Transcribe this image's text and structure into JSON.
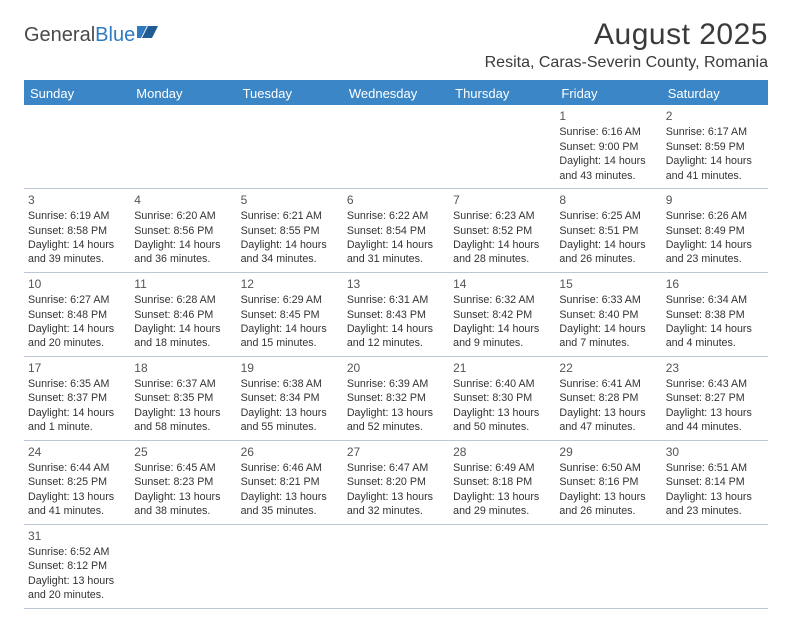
{
  "logo": {
    "text1": "General",
    "text2": "Blue"
  },
  "title": "August 2025",
  "subtitle": "Resita, Caras-Severin County, Romania",
  "colors": {
    "header_bg": "#3b86c6",
    "header_text": "#ffffff",
    "grid_line": "#b9c7d6",
    "text": "#333333",
    "logo_gray": "#4a4a4a",
    "logo_blue": "#2f7bbf"
  },
  "weekdays": [
    "Sunday",
    "Monday",
    "Tuesday",
    "Wednesday",
    "Thursday",
    "Friday",
    "Saturday"
  ],
  "weeks": [
    [
      null,
      null,
      null,
      null,
      null,
      {
        "n": "1",
        "sr": "Sunrise: 6:16 AM",
        "ss": "Sunset: 9:00 PM",
        "d1": "Daylight: 14 hours",
        "d2": "and 43 minutes."
      },
      {
        "n": "2",
        "sr": "Sunrise: 6:17 AM",
        "ss": "Sunset: 8:59 PM",
        "d1": "Daylight: 14 hours",
        "d2": "and 41 minutes."
      }
    ],
    [
      {
        "n": "3",
        "sr": "Sunrise: 6:19 AM",
        "ss": "Sunset: 8:58 PM",
        "d1": "Daylight: 14 hours",
        "d2": "and 39 minutes."
      },
      {
        "n": "4",
        "sr": "Sunrise: 6:20 AM",
        "ss": "Sunset: 8:56 PM",
        "d1": "Daylight: 14 hours",
        "d2": "and 36 minutes."
      },
      {
        "n": "5",
        "sr": "Sunrise: 6:21 AM",
        "ss": "Sunset: 8:55 PM",
        "d1": "Daylight: 14 hours",
        "d2": "and 34 minutes."
      },
      {
        "n": "6",
        "sr": "Sunrise: 6:22 AM",
        "ss": "Sunset: 8:54 PM",
        "d1": "Daylight: 14 hours",
        "d2": "and 31 minutes."
      },
      {
        "n": "7",
        "sr": "Sunrise: 6:23 AM",
        "ss": "Sunset: 8:52 PM",
        "d1": "Daylight: 14 hours",
        "d2": "and 28 minutes."
      },
      {
        "n": "8",
        "sr": "Sunrise: 6:25 AM",
        "ss": "Sunset: 8:51 PM",
        "d1": "Daylight: 14 hours",
        "d2": "and 26 minutes."
      },
      {
        "n": "9",
        "sr": "Sunrise: 6:26 AM",
        "ss": "Sunset: 8:49 PM",
        "d1": "Daylight: 14 hours",
        "d2": "and 23 minutes."
      }
    ],
    [
      {
        "n": "10",
        "sr": "Sunrise: 6:27 AM",
        "ss": "Sunset: 8:48 PM",
        "d1": "Daylight: 14 hours",
        "d2": "and 20 minutes."
      },
      {
        "n": "11",
        "sr": "Sunrise: 6:28 AM",
        "ss": "Sunset: 8:46 PM",
        "d1": "Daylight: 14 hours",
        "d2": "and 18 minutes."
      },
      {
        "n": "12",
        "sr": "Sunrise: 6:29 AM",
        "ss": "Sunset: 8:45 PM",
        "d1": "Daylight: 14 hours",
        "d2": "and 15 minutes."
      },
      {
        "n": "13",
        "sr": "Sunrise: 6:31 AM",
        "ss": "Sunset: 8:43 PM",
        "d1": "Daylight: 14 hours",
        "d2": "and 12 minutes."
      },
      {
        "n": "14",
        "sr": "Sunrise: 6:32 AM",
        "ss": "Sunset: 8:42 PM",
        "d1": "Daylight: 14 hours",
        "d2": "and 9 minutes."
      },
      {
        "n": "15",
        "sr": "Sunrise: 6:33 AM",
        "ss": "Sunset: 8:40 PM",
        "d1": "Daylight: 14 hours",
        "d2": "and 7 minutes."
      },
      {
        "n": "16",
        "sr": "Sunrise: 6:34 AM",
        "ss": "Sunset: 8:38 PM",
        "d1": "Daylight: 14 hours",
        "d2": "and 4 minutes."
      }
    ],
    [
      {
        "n": "17",
        "sr": "Sunrise: 6:35 AM",
        "ss": "Sunset: 8:37 PM",
        "d1": "Daylight: 14 hours",
        "d2": "and 1 minute."
      },
      {
        "n": "18",
        "sr": "Sunrise: 6:37 AM",
        "ss": "Sunset: 8:35 PM",
        "d1": "Daylight: 13 hours",
        "d2": "and 58 minutes."
      },
      {
        "n": "19",
        "sr": "Sunrise: 6:38 AM",
        "ss": "Sunset: 8:34 PM",
        "d1": "Daylight: 13 hours",
        "d2": "and 55 minutes."
      },
      {
        "n": "20",
        "sr": "Sunrise: 6:39 AM",
        "ss": "Sunset: 8:32 PM",
        "d1": "Daylight: 13 hours",
        "d2": "and 52 minutes."
      },
      {
        "n": "21",
        "sr": "Sunrise: 6:40 AM",
        "ss": "Sunset: 8:30 PM",
        "d1": "Daylight: 13 hours",
        "d2": "and 50 minutes."
      },
      {
        "n": "22",
        "sr": "Sunrise: 6:41 AM",
        "ss": "Sunset: 8:28 PM",
        "d1": "Daylight: 13 hours",
        "d2": "and 47 minutes."
      },
      {
        "n": "23",
        "sr": "Sunrise: 6:43 AM",
        "ss": "Sunset: 8:27 PM",
        "d1": "Daylight: 13 hours",
        "d2": "and 44 minutes."
      }
    ],
    [
      {
        "n": "24",
        "sr": "Sunrise: 6:44 AM",
        "ss": "Sunset: 8:25 PM",
        "d1": "Daylight: 13 hours",
        "d2": "and 41 minutes."
      },
      {
        "n": "25",
        "sr": "Sunrise: 6:45 AM",
        "ss": "Sunset: 8:23 PM",
        "d1": "Daylight: 13 hours",
        "d2": "and 38 minutes."
      },
      {
        "n": "26",
        "sr": "Sunrise: 6:46 AM",
        "ss": "Sunset: 8:21 PM",
        "d1": "Daylight: 13 hours",
        "d2": "and 35 minutes."
      },
      {
        "n": "27",
        "sr": "Sunrise: 6:47 AM",
        "ss": "Sunset: 8:20 PM",
        "d1": "Daylight: 13 hours",
        "d2": "and 32 minutes."
      },
      {
        "n": "28",
        "sr": "Sunrise: 6:49 AM",
        "ss": "Sunset: 8:18 PM",
        "d1": "Daylight: 13 hours",
        "d2": "and 29 minutes."
      },
      {
        "n": "29",
        "sr": "Sunrise: 6:50 AM",
        "ss": "Sunset: 8:16 PM",
        "d1": "Daylight: 13 hours",
        "d2": "and 26 minutes."
      },
      {
        "n": "30",
        "sr": "Sunrise: 6:51 AM",
        "ss": "Sunset: 8:14 PM",
        "d1": "Daylight: 13 hours",
        "d2": "and 23 minutes."
      }
    ],
    [
      {
        "n": "31",
        "sr": "Sunrise: 6:52 AM",
        "ss": "Sunset: 8:12 PM",
        "d1": "Daylight: 13 hours",
        "d2": "and 20 minutes."
      },
      null,
      null,
      null,
      null,
      null,
      null
    ]
  ]
}
